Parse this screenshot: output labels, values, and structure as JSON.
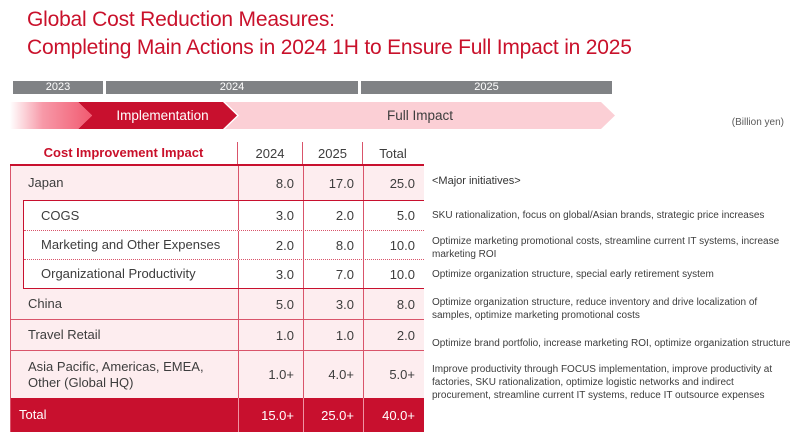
{
  "title": {
    "line1": "Global Cost Reduction Measures:",
    "line2": "Completing Main Actions in 2024 1H to Ensure Full Impact in 2025"
  },
  "unit_note": "(Billion yen)",
  "timeline": {
    "years": [
      "2023",
      "2024",
      "2025"
    ],
    "phase_implementation": "Implementation",
    "phase_full_impact": "Full Impact"
  },
  "table": {
    "header": {
      "label": "Cost Improvement Impact",
      "col_2024": "2024",
      "col_2025": "2025",
      "col_total": "Total"
    },
    "rows": {
      "japan": {
        "label": "Japan",
        "y2024": "8.0",
        "y2025": "17.0",
        "total": "25.0"
      },
      "cogs": {
        "label": "COGS",
        "y2024": "3.0",
        "y2025": "2.0",
        "total": "5.0"
      },
      "marketing": {
        "label": "Marketing and Other Expenses",
        "y2024": "2.0",
        "y2025": "8.0",
        "total": "10.0"
      },
      "org": {
        "label": "Organizational Productivity",
        "y2024": "3.0",
        "y2025": "7.0",
        "total": "10.0"
      },
      "china": {
        "label": "China",
        "y2024": "5.0",
        "y2025": "3.0",
        "total": "8.0"
      },
      "travel": {
        "label": "Travel Retail",
        "y2024": "1.0",
        "y2025": "1.0",
        "total": "2.0"
      },
      "apac": {
        "label": "Asia Pacific, Americas, EMEA, Other (Global HQ)",
        "y2024": "1.0+",
        "y2025": "4.0+",
        "total": "5.0+"
      },
      "total": {
        "label": "Total",
        "y2024": "15.0+",
        "y2025": "25.0+",
        "total": "40.0+"
      }
    }
  },
  "initiatives": {
    "heading": "<Major initiatives>",
    "cogs": "SKU rationalization, focus on global/Asian brands, strategic price increases",
    "marketing": "Optimize marketing promotional costs, streamline current IT systems, increase marketing ROI",
    "org": "Optimize organization structure, special early retirement system",
    "china": "Optimize organization structure, reduce inventory and drive localization of samples, optimize marketing promotional costs",
    "travel": "Optimize brand portfolio, increase marketing ROI, optimize organization structure",
    "apac": "Improve productivity through FOCUS implementation, improve productivity at factories, SKU rationalization, optimize logistic networks and indirect procurement, streamline current IT systems, reduce IT outsource expenses"
  },
  "colors": {
    "brand_red": "#c8102e",
    "title_red": "#c9112b",
    "rose": "#f15a70",
    "light_pink": "#fbcfd5",
    "row_pink": "#fdedef",
    "gray_bar": "#808285",
    "line_red": "#d9546a",
    "text_dark": "#3d3d3d"
  }
}
